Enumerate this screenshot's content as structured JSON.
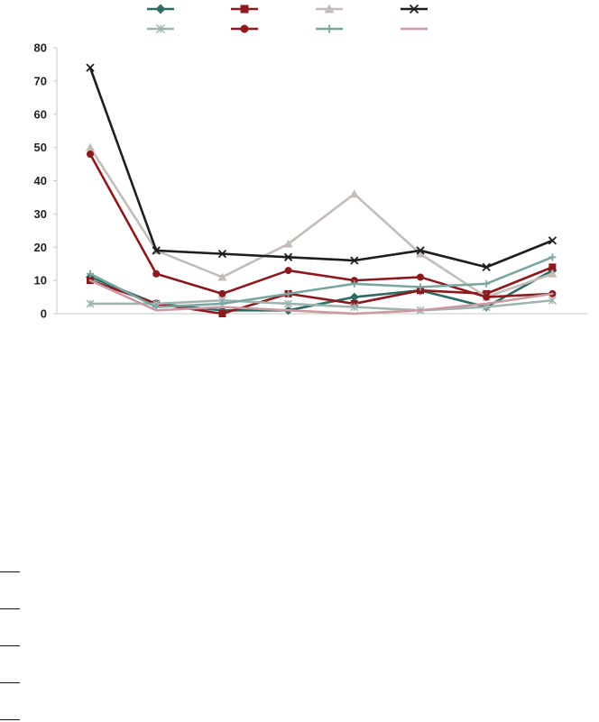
{
  "chart_data": {
    "type": "line",
    "title": "",
    "xlabel": "",
    "ylabel": "",
    "ylim": [
      0,
      80
    ],
    "yticks": [
      0,
      10,
      20,
      30,
      40,
      50,
      60,
      70,
      80
    ],
    "x": [
      1,
      2,
      3,
      4,
      5,
      6,
      7,
      8
    ],
    "grid": false,
    "legend_position": "top",
    "series": [
      {
        "values": [
          11,
          3,
          1,
          1,
          5,
          7,
          2,
          13
        ],
        "color": "#2e6b62",
        "marker": "diamond"
      },
      {
        "values": [
          10,
          3,
          0,
          6,
          3,
          7,
          6,
          14
        ],
        "color": "#8b1a1f",
        "marker": "square"
      },
      {
        "values": [
          50,
          19,
          11,
          21,
          36,
          18,
          5,
          12
        ],
        "color": "#c4bcb8",
        "marker": "triangle"
      },
      {
        "values": [
          74,
          19,
          18,
          17,
          16,
          19,
          14,
          22
        ],
        "color": "#1e1e1e",
        "marker": "x"
      },
      {
        "values": [
          3,
          3,
          4,
          3,
          2,
          1,
          2,
          4
        ],
        "color": "#9fb5b0",
        "marker": "star"
      },
      {
        "values": [
          48,
          12,
          6,
          13,
          10,
          11,
          5,
          6
        ],
        "color": "#8b1a1f",
        "marker": "circle"
      },
      {
        "values": [
          12,
          2,
          3,
          6,
          9,
          8,
          9,
          17
        ],
        "color": "#7aa6a0",
        "marker": "plus"
      },
      {
        "values": [
          10,
          1,
          2,
          1,
          0,
          1,
          3,
          6
        ],
        "color": "#c99aa2",
        "marker": "none"
      }
    ]
  }
}
